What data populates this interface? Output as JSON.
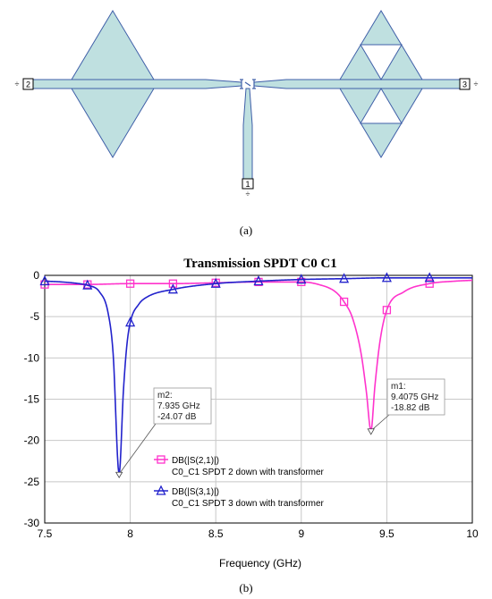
{
  "layout": {
    "ports": [
      "2",
      "3",
      "1"
    ],
    "colors": {
      "fill": "#bfe0e0",
      "stroke": "#3f5fa8"
    }
  },
  "captions": {
    "a": "(a)",
    "b": "(b)"
  },
  "chart_data": {
    "type": "line",
    "title": "Transmission SPDT C0 C1",
    "xlabel": "Frequency (GHz)",
    "ylabel": "",
    "xlim": [
      7.5,
      10
    ],
    "ylim": [
      -30,
      0
    ],
    "xticks": [
      "7.5",
      "8",
      "8.5",
      "9",
      "9.5",
      "10"
    ],
    "yticks": [
      "0",
      "-5",
      "-10",
      "-15",
      "-20",
      "-25",
      "-30"
    ],
    "grid": true,
    "legend_position": "center",
    "series": [
      {
        "name": "DB(|S(2,1)|)",
        "description": "C0_C1 SPDT 2 down with transformer",
        "color": "#ff33cc",
        "marker": "square",
        "x": [
          7.5,
          7.75,
          8.0,
          8.25,
          8.5,
          8.75,
          9.0,
          9.1,
          9.2,
          9.25,
          9.3,
          9.35,
          9.38,
          9.4075,
          9.43,
          9.46,
          9.5,
          9.6,
          9.75,
          9.9,
          10.0
        ],
        "y": [
          -1.1,
          -1.1,
          -1.0,
          -1.0,
          -0.9,
          -0.8,
          -0.8,
          -1.1,
          -2.0,
          -3.2,
          -5.2,
          -9.5,
          -14.0,
          -18.82,
          -13.5,
          -8.0,
          -4.2,
          -2.0,
          -1.0,
          -0.7,
          -0.6
        ]
      },
      {
        "name": "DB(|S(3,1)|)",
        "description": "C0_C1 SPDT 3 down with transformer",
        "color": "#2222cc",
        "marker": "triangle",
        "x": [
          7.5,
          7.6,
          7.7,
          7.75,
          7.82,
          7.87,
          7.9,
          7.935,
          7.96,
          7.98,
          8.0,
          8.05,
          8.1,
          8.25,
          8.5,
          8.75,
          9.0,
          9.25,
          9.5,
          9.75,
          10.0
        ],
        "y": [
          -0.7,
          -0.8,
          -1.0,
          -1.2,
          -2.0,
          -4.5,
          -9.5,
          -24.07,
          -14.0,
          -8.5,
          -5.7,
          -3.5,
          -2.6,
          -1.7,
          -1.0,
          -0.7,
          -0.5,
          -0.4,
          -0.3,
          -0.3,
          -0.3
        ]
      }
    ],
    "marker_points": {
      "S21": [
        7.5,
        7.75,
        8.0,
        8.25,
        8.5,
        8.75,
        9.0,
        9.25,
        9.5,
        9.75
      ],
      "S31": [
        7.5,
        7.75,
        8.0,
        8.25,
        8.5,
        8.75,
        9.0,
        9.25,
        9.5,
        9.75
      ]
    },
    "annotations": [
      {
        "id": "m2",
        "label": "m2:",
        "line1": "7.935 GHz",
        "line2": "-24.07 dB",
        "x": 7.935,
        "y": -24.07
      },
      {
        "id": "m1",
        "label": "m1:",
        "line1": "9.4075 GHz",
        "line2": "-18.82 dB",
        "x": 9.4075,
        "y": -18.82
      }
    ]
  }
}
